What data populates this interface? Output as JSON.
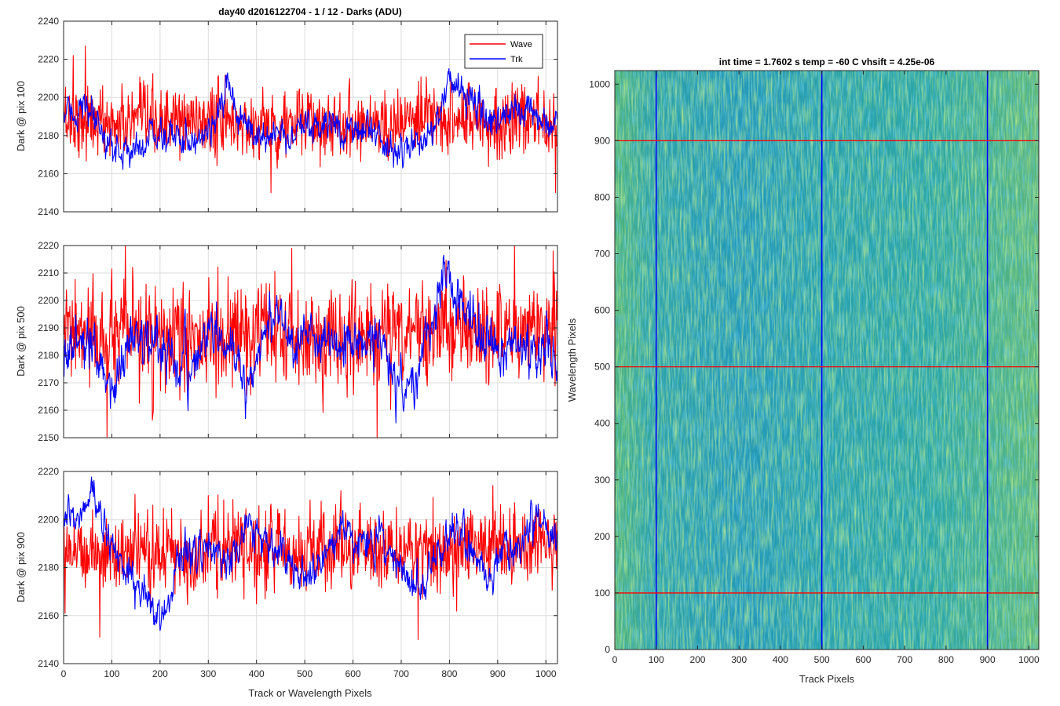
{
  "colors": {
    "wave": "#ff0000",
    "trk": "#0000ff",
    "grid": "#dcdcdc",
    "axis": "#262626",
    "heatmap_low": "#1f8fc0",
    "heatmap_mid": "#29ab9f",
    "heatmap_high": "#a8c852"
  },
  "chart_data": [
    {
      "type": "line",
      "title": "day40 d2016122704 - 1 / 12 - Darks (ADU)",
      "xlabel": "",
      "ylabel": "Dark @ pix 100",
      "xlim": [
        0,
        1024
      ],
      "ylim": [
        2140,
        2240
      ],
      "xticks": [
        0,
        100,
        200,
        300,
        400,
        500,
        600,
        700,
        800,
        900,
        1000
      ],
      "yticks": [
        2140,
        2160,
        2180,
        2200,
        2220,
        2240
      ],
      "xtick_labels_visible": false,
      "grid": true,
      "legend": {
        "placement": "top-right",
        "entries": [
          "Wave",
          "Trk"
        ]
      },
      "series": [
        {
          "name": "Wave",
          "color": "#ff0000",
          "mean": 2186,
          "noise_sd": 9,
          "x": [
            0,
            100,
            200,
            300,
            400,
            500,
            600,
            700,
            800,
            900,
            1000,
            1024
          ],
          "y": [
            2190,
            2186,
            2187,
            2188,
            2185,
            2186,
            2187,
            2186,
            2190,
            2187,
            2188,
            2188
          ],
          "spikes": [
            [
              45,
              2227
            ],
            [
              20,
              2222
            ],
            [
              1020,
              2150
            ],
            [
              430,
              2150
            ]
          ]
        },
        {
          "name": "Trk",
          "color": "#0000ff",
          "mean": 2183,
          "noise_sd": 4.5,
          "x": [
            0,
            40,
            80,
            120,
            160,
            200,
            240,
            280,
            320,
            340,
            360,
            400,
            440,
            480,
            520,
            560,
            600,
            640,
            680,
            720,
            760,
            790,
            800,
            820,
            850,
            880,
            920,
            960,
            1000,
            1024
          ],
          "y": [
            2190,
            2195,
            2180,
            2170,
            2176,
            2181,
            2178,
            2180,
            2190,
            2203,
            2190,
            2180,
            2181,
            2180,
            2183,
            2185,
            2184,
            2184,
            2172,
            2174,
            2180,
            2200,
            2208,
            2206,
            2199,
            2188,
            2190,
            2191,
            2189,
            2185
          ]
        }
      ]
    },
    {
      "type": "line",
      "title": "",
      "xlabel": "",
      "ylabel": "Dark @ pix 500",
      "xlim": [
        0,
        1024
      ],
      "ylim": [
        2150,
        2220
      ],
      "xticks": [
        0,
        100,
        200,
        300,
        400,
        500,
        600,
        700,
        800,
        900,
        1000
      ],
      "yticks": [
        2150,
        2160,
        2170,
        2180,
        2190,
        2200,
        2210,
        2220
      ],
      "xtick_labels_visible": false,
      "grid": true,
      "series": [
        {
          "name": "Wave",
          "color": "#ff0000",
          "mean": 2186,
          "noise_sd": 9,
          "x": [
            0,
            100,
            200,
            300,
            400,
            500,
            600,
            700,
            800,
            900,
            1000,
            1024
          ],
          "y": [
            2188,
            2186,
            2185,
            2185,
            2187,
            2186,
            2186,
            2190,
            2190,
            2188,
            2190,
            2189
          ],
          "spikes": [
            [
              128,
              2220
            ],
            [
              1015,
              2218
            ],
            [
              90,
              2150
            ],
            [
              650,
              2150
            ]
          ]
        },
        {
          "name": "Trk",
          "color": "#0000ff",
          "mean": 2183,
          "noise_sd": 4.5,
          "x": [
            0,
            40,
            80,
            100,
            140,
            180,
            220,
            260,
            300,
            340,
            380,
            420,
            460,
            480,
            520,
            560,
            600,
            660,
            700,
            740,
            780,
            800,
            840,
            880,
            920,
            960,
            1000,
            1024
          ],
          "y": [
            2180,
            2186,
            2172,
            2168,
            2187,
            2185,
            2180,
            2173,
            2190,
            2183,
            2168,
            2192,
            2195,
            2185,
            2184,
            2185,
            2185,
            2185,
            2166,
            2175,
            2202,
            2208,
            2192,
            2186,
            2183,
            2184,
            2182,
            2172
          ]
        }
      ]
    },
    {
      "type": "line",
      "title": "",
      "xlabel": "Track or Wavelength Pixels",
      "ylabel": "Dark @ pix 900",
      "xlim": [
        0,
        1024
      ],
      "ylim": [
        2140,
        2220
      ],
      "xticks": [
        0,
        100,
        200,
        300,
        400,
        500,
        600,
        700,
        800,
        900,
        1000
      ],
      "yticks": [
        2140,
        2160,
        2180,
        2200,
        2220
      ],
      "xtick_labels_visible": true,
      "grid": true,
      "series": [
        {
          "name": "Wave",
          "color": "#ff0000",
          "mean": 2187,
          "noise_sd": 8,
          "x": [
            0,
            100,
            200,
            300,
            400,
            500,
            600,
            700,
            800,
            900,
            1000,
            1024
          ],
          "y": [
            2190,
            2185,
            2186,
            2187,
            2188,
            2187,
            2188,
            2187,
            2188,
            2190,
            2189,
            2188
          ],
          "spikes": [
            [
              300,
              2210
            ],
            [
              75,
              2151
            ],
            [
              735,
              2150
            ],
            [
              575,
              2212
            ]
          ]
        },
        {
          "name": "Trk",
          "color": "#0000ff",
          "mean": 2187,
          "noise_sd": 4,
          "x": [
            0,
            30,
            60,
            80,
            120,
            160,
            200,
            240,
            280,
            320,
            360,
            380,
            420,
            460,
            500,
            540,
            580,
            620,
            660,
            700,
            740,
            780,
            820,
            860,
            880,
            900,
            940,
            980,
            1024
          ],
          "y": [
            2198,
            2200,
            2212,
            2200,
            2180,
            2172,
            2156,
            2185,
            2188,
            2184,
            2186,
            2203,
            2188,
            2183,
            2175,
            2185,
            2198,
            2188,
            2193,
            2180,
            2170,
            2188,
            2198,
            2184,
            2172,
            2185,
            2187,
            2200,
            2190
          ]
        }
      ]
    },
    {
      "type": "heatmap",
      "title": "int time = 1.7602 s    temp = -60 C    vhsift = 4.25e-06",
      "xlabel": "Track Pixels",
      "ylabel": "Wavelength Pixels",
      "xlim": [
        0,
        1024
      ],
      "ylim": [
        0,
        1024
      ],
      "xticks": [
        0,
        100,
        200,
        300,
        400,
        500,
        600,
        700,
        800,
        900,
        1000
      ],
      "yticks": [
        0,
        100,
        200,
        300,
        400,
        500,
        600,
        700,
        800,
        900,
        1000
      ],
      "grid": false,
      "value_range": [
        2150,
        2220
      ],
      "vertical_marker_lines": {
        "color": "#0000ff",
        "x": [
          100,
          500,
          900
        ]
      },
      "horizontal_marker_lines": {
        "color": "#ff0000",
        "y": [
          100,
          500,
          900
        ]
      }
    }
  ]
}
